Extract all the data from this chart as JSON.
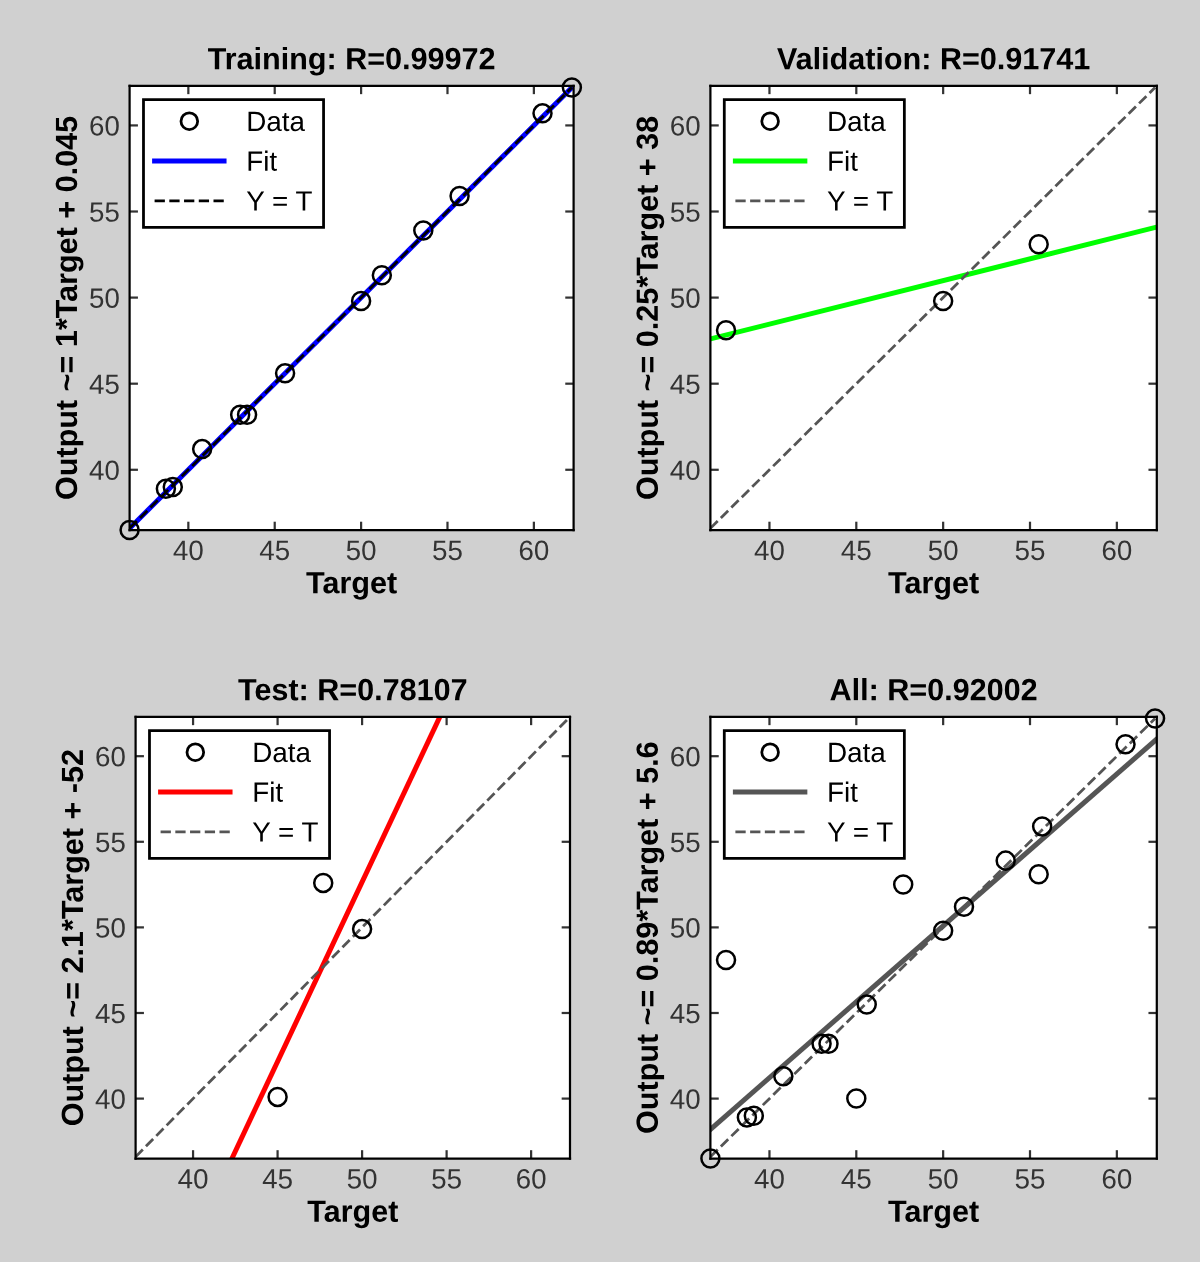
{
  "chart_data": [
    {
      "type": "scatter",
      "title": "Training: R=0.99972",
      "xlabel": "Target",
      "ylabel": "Output ~= 1*Target + 0.045",
      "xlim": [
        36.6,
        62.3
      ],
      "ylim": [
        36.5,
        62.3
      ],
      "xticks": [
        40,
        45,
        50,
        55,
        60
      ],
      "yticks": [
        40,
        45,
        50,
        55,
        60
      ],
      "legend": "top left",
      "grid": false,
      "series": [
        {
          "name": "Data",
          "marker": "circle",
          "color": "#000000",
          "x": [
            36.6,
            38.7,
            39.1,
            40.8,
            43.0,
            43.4,
            45.6,
            50.0,
            51.2,
            53.6,
            55.7,
            60.5,
            62.2
          ],
          "values": [
            36.5,
            38.9,
            39.0,
            41.2,
            43.2,
            43.2,
            45.6,
            49.8,
            51.3,
            53.9,
            55.9,
            60.7,
            62.2
          ]
        },
        {
          "name": "Fit",
          "type": "line",
          "line_style": "solid",
          "marker": "none",
          "color": "#0000ff",
          "x": [
            36.6,
            62.2
          ],
          "values": [
            36.6,
            62.2
          ]
        },
        {
          "name": "Y = T",
          "type": "line",
          "line_style": "dashed",
          "marker": "none",
          "color": "#000000",
          "x": [
            36.6,
            62.2
          ],
          "values": [
            36.6,
            62.2
          ]
        }
      ]
    },
    {
      "type": "scatter",
      "title": "Validation: R=0.91741",
      "xlabel": "Target",
      "ylabel": "Output ~= 0.25*Target + 38",
      "xlim": [
        36.6,
        62.3
      ],
      "ylim": [
        36.5,
        62.3
      ],
      "xticks": [
        40,
        45,
        50,
        55,
        60
      ],
      "yticks": [
        40,
        45,
        50,
        55,
        60
      ],
      "legend": "top left",
      "grid": false,
      "series": [
        {
          "name": "Data",
          "marker": "circle",
          "color": "#000000",
          "x": [
            37.5,
            50.0,
            55.5
          ],
          "values": [
            48.1,
            49.8,
            53.1
          ]
        },
        {
          "name": "Fit",
          "type": "line",
          "line_style": "solid",
          "marker": "none",
          "color": "#00ff00",
          "x": [
            36.6,
            62.3
          ],
          "values": [
            47.6,
            54.1
          ]
        },
        {
          "name": "Y = T",
          "type": "line",
          "line_style": "dashed",
          "marker": "none",
          "color": "#555555",
          "x": [
            36.6,
            62.2
          ],
          "values": [
            36.6,
            62.2
          ]
        }
      ]
    },
    {
      "type": "scatter",
      "title": "Test: R=0.78107",
      "xlabel": "Target",
      "ylabel": "Output ~= 2.1*Target + -52",
      "xlim": [
        36.6,
        62.3
      ],
      "ylim": [
        36.5,
        62.3
      ],
      "xticks": [
        40,
        45,
        50,
        55,
        60
      ],
      "yticks": [
        40,
        45,
        50,
        55,
        60
      ],
      "legend": "top left",
      "grid": false,
      "series": [
        {
          "name": "Data",
          "marker": "circle",
          "color": "#000000",
          "x": [
            45.0,
            47.7,
            50.0
          ],
          "values": [
            40.1,
            52.6,
            49.9
          ]
        },
        {
          "name": "Fit",
          "type": "line",
          "line_style": "solid",
          "marker": "none",
          "color": "#ff0000",
          "x": [
            42.3,
            54.6
          ],
          "values": [
            36.5,
            62.3
          ]
        },
        {
          "name": "Y = T",
          "type": "line",
          "line_style": "dashed",
          "marker": "none",
          "color": "#555555",
          "x": [
            36.6,
            62.2
          ],
          "values": [
            36.6,
            62.2
          ]
        }
      ]
    },
    {
      "type": "scatter",
      "title": "All: R=0.92002",
      "xlabel": "Target",
      "ylabel": "Output ~= 0.89*Target + 5.6",
      "xlim": [
        36.6,
        62.3
      ],
      "ylim": [
        36.5,
        62.3
      ],
      "xticks": [
        40,
        45,
        50,
        55,
        60
      ],
      "yticks": [
        40,
        45,
        50,
        55,
        60
      ],
      "legend": "top left",
      "grid": false,
      "series": [
        {
          "name": "Data",
          "marker": "circle",
          "color": "#000000",
          "x": [
            36.6,
            37.5,
            38.7,
            39.1,
            40.8,
            43.0,
            43.4,
            45.0,
            45.6,
            47.7,
            50.0,
            51.2,
            53.6,
            55.5,
            55.7,
            60.5,
            62.2
          ],
          "values": [
            36.5,
            48.1,
            38.9,
            39.0,
            41.3,
            43.2,
            43.2,
            40.0,
            45.5,
            52.5,
            49.8,
            51.2,
            53.9,
            53.1,
            55.9,
            60.7,
            62.2
          ]
        },
        {
          "name": "Fit",
          "type": "line",
          "line_style": "solid",
          "marker": "none",
          "color": "#555555",
          "x": [
            36.6,
            62.3
          ],
          "values": [
            38.2,
            61.0
          ]
        },
        {
          "name": "Y = T",
          "type": "line",
          "line_style": "dashed",
          "marker": "none",
          "color": "#555555",
          "x": [
            36.6,
            62.2
          ],
          "values": [
            36.6,
            62.2
          ]
        }
      ]
    }
  ]
}
